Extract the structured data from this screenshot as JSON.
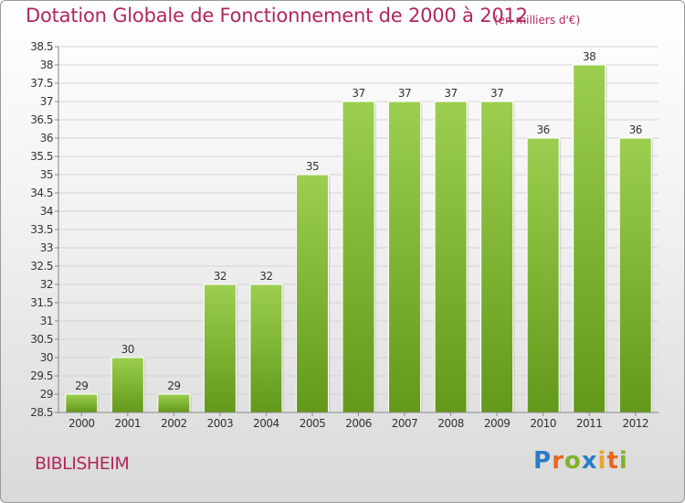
{
  "chart_data": {
    "type": "bar",
    "title": "Dotation Globale de Fonctionnement de 2000 à 2012",
    "unit": "(en milliers d'€)",
    "categories": [
      "2000",
      "2001",
      "2002",
      "2003",
      "2004",
      "2005",
      "2006",
      "2007",
      "2008",
      "2009",
      "2010",
      "2011",
      "2012"
    ],
    "values": [
      29,
      30,
      29,
      32,
      32,
      35,
      37,
      37,
      37,
      37,
      36,
      38,
      36
    ],
    "ylim": [
      28.5,
      38.5
    ],
    "yticks": [
      "28.5",
      "29",
      "29.5",
      "30",
      "30.5",
      "31",
      "31.5",
      "32",
      "32.5",
      "33",
      "33.5",
      "34",
      "34.5",
      "35",
      "35.5",
      "36",
      "36.5",
      "37",
      "37.5",
      "38",
      "38.5"
    ],
    "grid": true,
    "bar_color": "#7fb32b"
  },
  "commune": "BIBLISHEIM",
  "logo": {
    "p": "P",
    "r": "r",
    "o": "o",
    "x": "x",
    "i1": "i",
    "t": "t",
    "i2": "i"
  }
}
